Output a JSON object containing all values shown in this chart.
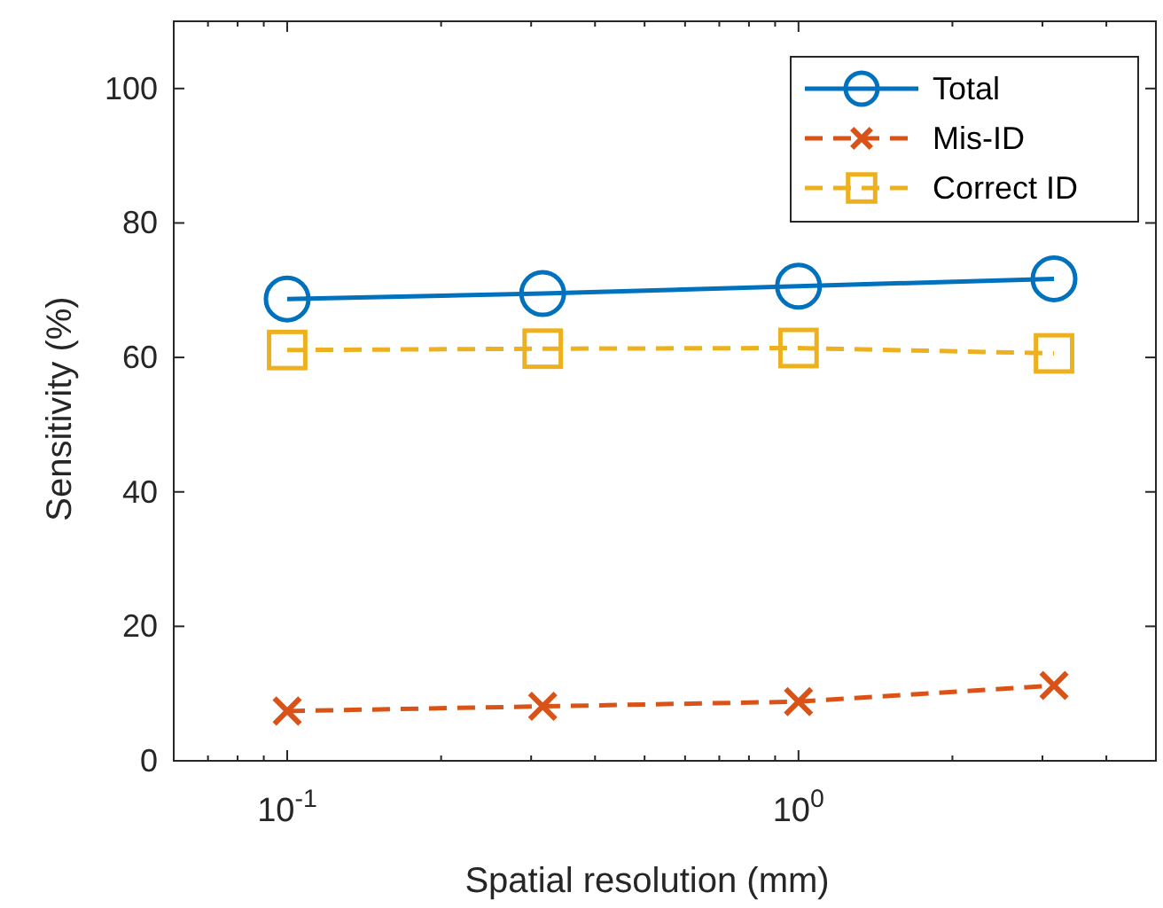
{
  "chart_data": {
    "type": "line",
    "xlabel": "Spatial resolution (mm)",
    "ylabel": "Sensitivity (%)",
    "log": "x",
    "x": [
      0.1,
      0.316,
      1,
      3.16
    ],
    "xlim": [
      0.06,
      5
    ],
    "xticks": [
      {
        "value": 0.06,
        "label": null
      },
      {
        "value": 0.07,
        "label": null
      },
      {
        "value": 0.08,
        "label": null
      },
      {
        "value": 0.09,
        "label": null
      },
      {
        "value": 0.1,
        "label": "10$^{-1}$"
      },
      {
        "value": 0.2,
        "label": null
      },
      {
        "value": 0.3,
        "label": null
      },
      {
        "value": 0.4,
        "label": null
      },
      {
        "value": 0.5,
        "label": null
      },
      {
        "value": 0.6,
        "label": null
      },
      {
        "value": 0.7,
        "label": null
      },
      {
        "value": 0.8,
        "label": null
      },
      {
        "value": 0.9,
        "label": null
      },
      {
        "value": 1,
        "label": "10$^{0}$"
      },
      {
        "value": 2,
        "label": null
      },
      {
        "value": 3,
        "label": null
      },
      {
        "value": 4,
        "label": null
      },
      {
        "value": 5,
        "label": null
      }
    ],
    "ylim": [
      0,
      110
    ],
    "yticks": [
      0,
      20,
      40,
      60,
      80,
      100
    ],
    "grid": false,
    "legend": "top right",
    "series": [
      {
        "name": "Total",
        "color": "#0072bd",
        "values": [
          68.7,
          69.5,
          70.6,
          71.7
        ],
        "marker": "circle",
        "line_style": "solid"
      },
      {
        "name": "Mis-ID",
        "color": "#d95319",
        "values": [
          7.4,
          8.1,
          8.8,
          11.2
        ],
        "marker": "cross",
        "line_style": "dashed"
      },
      {
        "name": "Correct ID",
        "color": "#edb120",
        "values": [
          61.1,
          61.3,
          61.4,
          60.6
        ],
        "marker": "square",
        "line_style": "dashed"
      }
    ]
  }
}
